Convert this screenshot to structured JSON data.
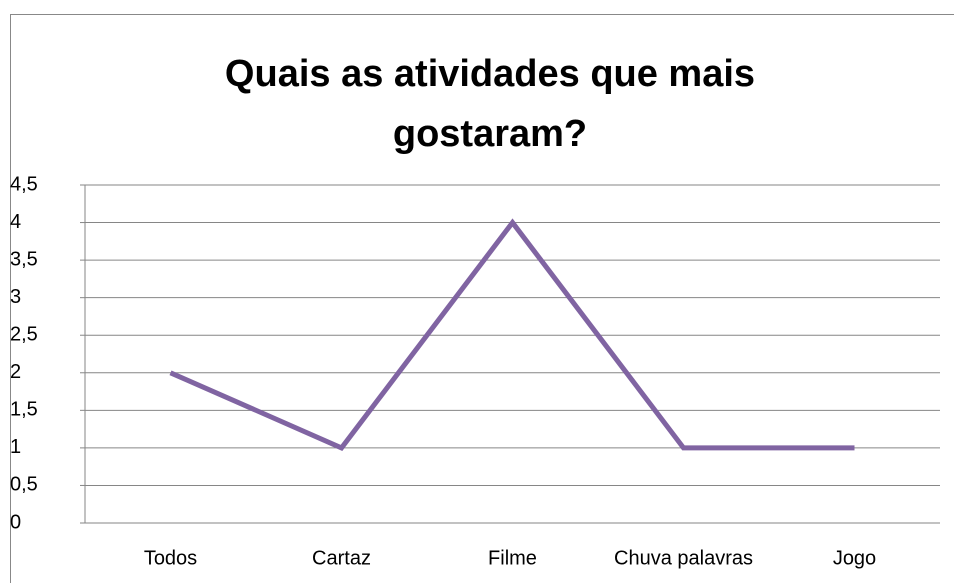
{
  "chart_data": {
    "type": "line",
    "title": "Quais as atividades que mais gostaram?",
    "categories": [
      "Todos",
      "Cartaz",
      "Filme",
      "Chuva palavras",
      "Jogo"
    ],
    "series": [
      {
        "name": "Series 1",
        "color": "#8064a2",
        "values": [
          2,
          1,
          4,
          1,
          1
        ]
      }
    ],
    "ylim": [
      0,
      4.5
    ],
    "yticks": [
      0,
      {
        "value": 0.5,
        "label": "0,5"
      },
      1,
      {
        "value": 1.5,
        "label": "1,5"
      },
      2,
      {
        "value": 2.5,
        "label": "2,5"
      },
      3,
      {
        "value": 3.5,
        "label": "3,5"
      },
      4,
      {
        "value": 4.5,
        "label": "4,5"
      }
    ],
    "grid": true,
    "legend": false
  }
}
